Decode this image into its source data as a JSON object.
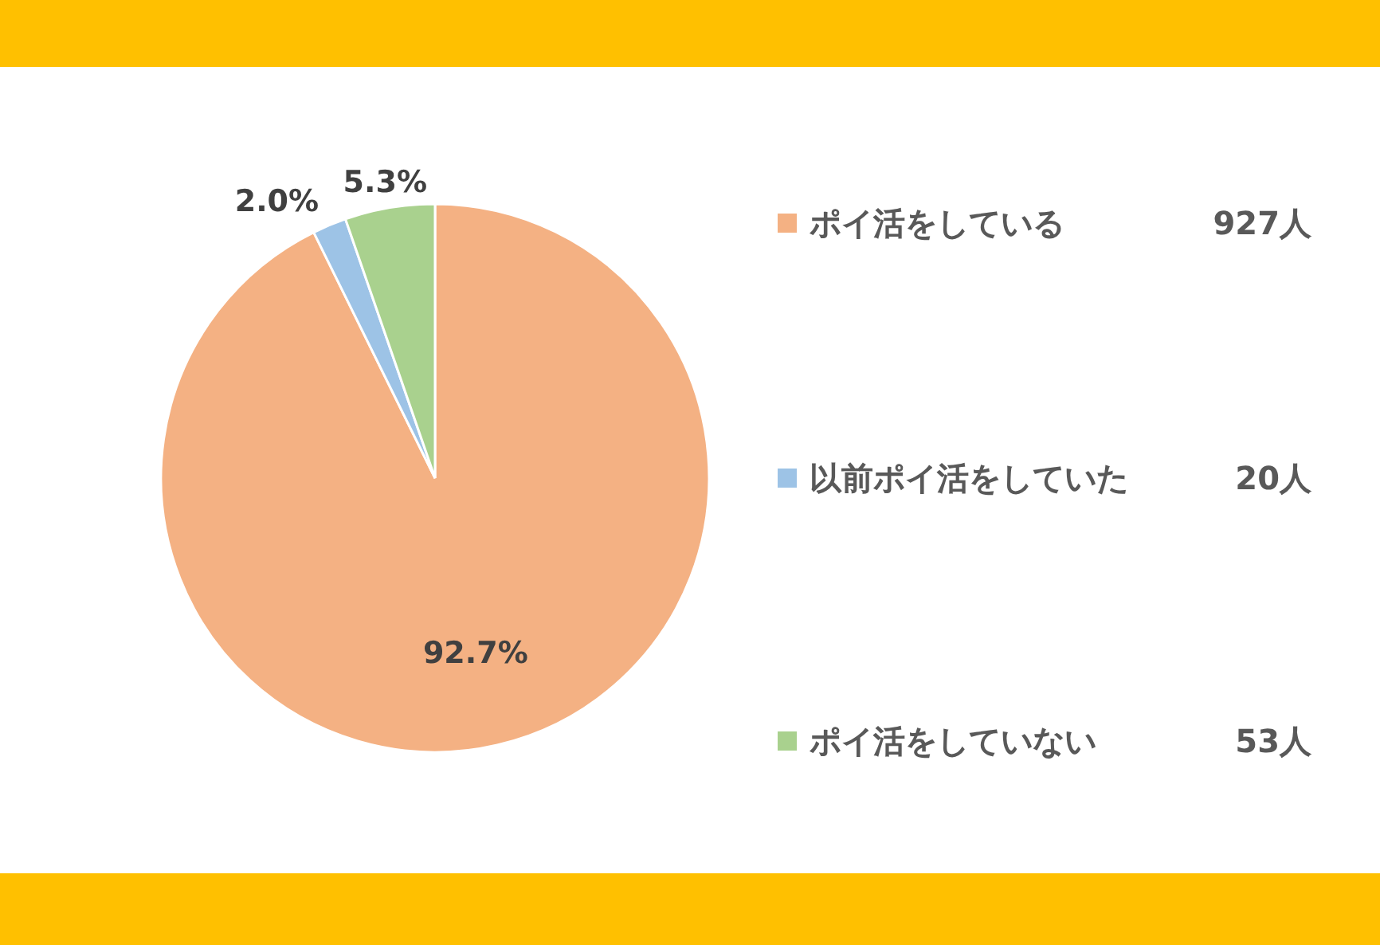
{
  "chart_data": {
    "type": "pie",
    "categories": [
      "ポイ活をしている",
      "以前ポイ活をしていた",
      "ポイ活をしていない"
    ],
    "values": [
      92.7,
      2.0,
      5.3
    ],
    "value_labels": [
      "92.7%",
      "2.0%",
      "5.3%"
    ],
    "colors": [
      "#f4b183",
      "#9dc3e6",
      "#a9d18e"
    ],
    "annotations": [
      "927人",
      "20人",
      "53人"
    ],
    "legend": "right"
  }
}
